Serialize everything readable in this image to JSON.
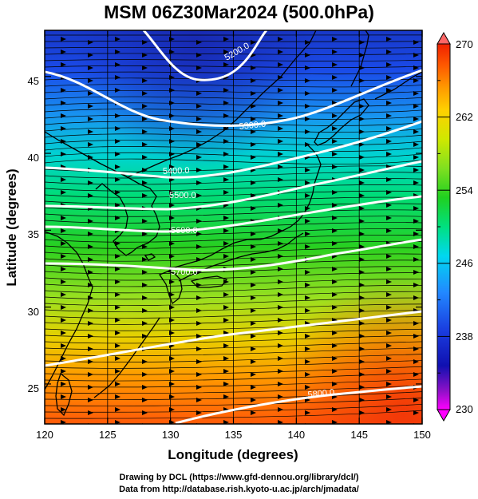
{
  "title": "MSM 06Z30Mar2024 (500.0hPa)",
  "map": {
    "x_axis": {
      "label": "Longitude (degrees)",
      "range": [
        120,
        150
      ],
      "ticks": [
        "120",
        "125",
        "130",
        "135",
        "140",
        "145",
        "150"
      ]
    },
    "y_axis": {
      "label": "Latitude  (degrees)",
      "range": [
        22.4,
        48
      ],
      "ticks": [
        "25",
        "30",
        "35",
        "40",
        "45"
      ]
    },
    "shading_variable": "temperature",
    "contour_lines": [
      {
        "label": "5200.0"
      },
      {
        "label": "5300.0"
      },
      {
        "label": "5400.0"
      },
      {
        "label": "5500.0"
      },
      {
        "label": "5600.0"
      },
      {
        "label": "5700.0"
      },
      {
        "label": "5800.0"
      }
    ],
    "wind_vectors": "streamlines (eastward flow)"
  },
  "colorbar": {
    "range": [
      230,
      270
    ],
    "ticks": [
      "270",
      "262",
      "254",
      "246",
      "238",
      "230"
    ],
    "colors": [
      "#ff00ff",
      "#8800cc",
      "#1010b0",
      "#1a3fe0",
      "#2288ff",
      "#00d8f0",
      "#00e080",
      "#20d020",
      "#80e020",
      "#d0e800",
      "#ffd000",
      "#ff9a00",
      "#ff5a00",
      "#f02000",
      "#ff6666"
    ]
  },
  "credits": {
    "line1": "Drawing by DCL (https://www.gfd-dennou.org/library/dcl/)",
    "line2": "Data from http://database.rish.kyoto-u.ac.jp/arch/jmadata/"
  }
}
